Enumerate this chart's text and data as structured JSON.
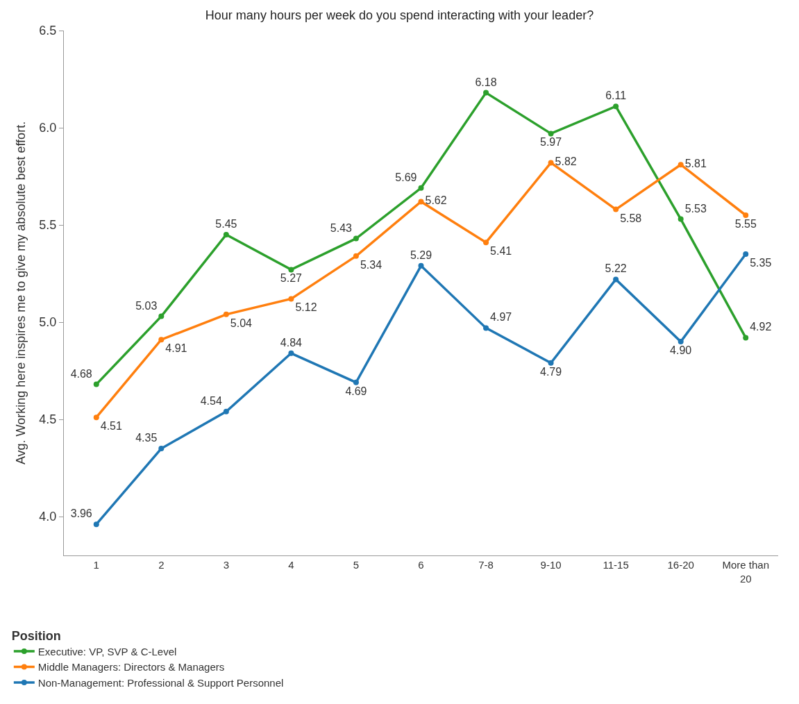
{
  "chart_data": {
    "type": "line",
    "title": "Hour many hours per week do you spend interacting with your leader?",
    "ylabel": "Avg. Working here inspires me to give my absolute best effort.",
    "legend_title": "Position",
    "categories": [
      "1",
      "2",
      "3",
      "4",
      "5",
      "6",
      "7-8",
      "9-10",
      "11-15",
      "16-20",
      "More than 20"
    ],
    "series": [
      {
        "name": "Executive: VP, SVP & C-Level",
        "color": "#2ca02c",
        "values": [
          4.68,
          5.03,
          5.45,
          5.27,
          5.43,
          5.69,
          6.18,
          5.97,
          6.11,
          5.53,
          4.92
        ],
        "value_labels": [
          "4.68",
          "5.03",
          "5.45",
          "5.27",
          "5.43",
          "5.69",
          "6.18",
          "5.97",
          "6.11",
          "5.53",
          "4.92"
        ]
      },
      {
        "name": "Middle Managers: Directors & Managers",
        "color": "#ff7f0e",
        "values": [
          4.51,
          4.91,
          5.04,
          5.12,
          5.34,
          5.62,
          5.41,
          5.82,
          5.58,
          5.81,
          5.55
        ],
        "value_labels": [
          "4.51",
          "4.91",
          "5.04",
          "5.12",
          "5.34",
          "5.62",
          "5.41",
          "5.82",
          "5.58",
          "5.81",
          "5.55"
        ]
      },
      {
        "name": "Non-Management: Professional & Support Personnel",
        "color": "#1f77b4",
        "values": [
          3.96,
          4.35,
          4.54,
          4.84,
          4.69,
          5.29,
          4.97,
          4.79,
          5.22,
          4.9,
          5.35
        ],
        "value_labels": [
          "3.96",
          "4.35",
          "4.54",
          "4.84",
          "4.69",
          "5.29",
          "4.97",
          "4.79",
          "5.22",
          "4.90",
          "5.35"
        ]
      }
    ],
    "ylim": [
      3.8,
      6.5
    ],
    "yticks": [
      {
        "value": 4,
        "label": "4.0"
      },
      {
        "value": 4.5,
        "label": "4.5"
      },
      {
        "value": 5,
        "label": "5.0"
      },
      {
        "value": 5.5,
        "label": "5.5"
      },
      {
        "value": 6,
        "label": "6.0"
      },
      {
        "value": 6.5,
        "label": "6.5"
      }
    ],
    "marker": "circle",
    "line_style": "solid",
    "legend": "bottom"
  }
}
